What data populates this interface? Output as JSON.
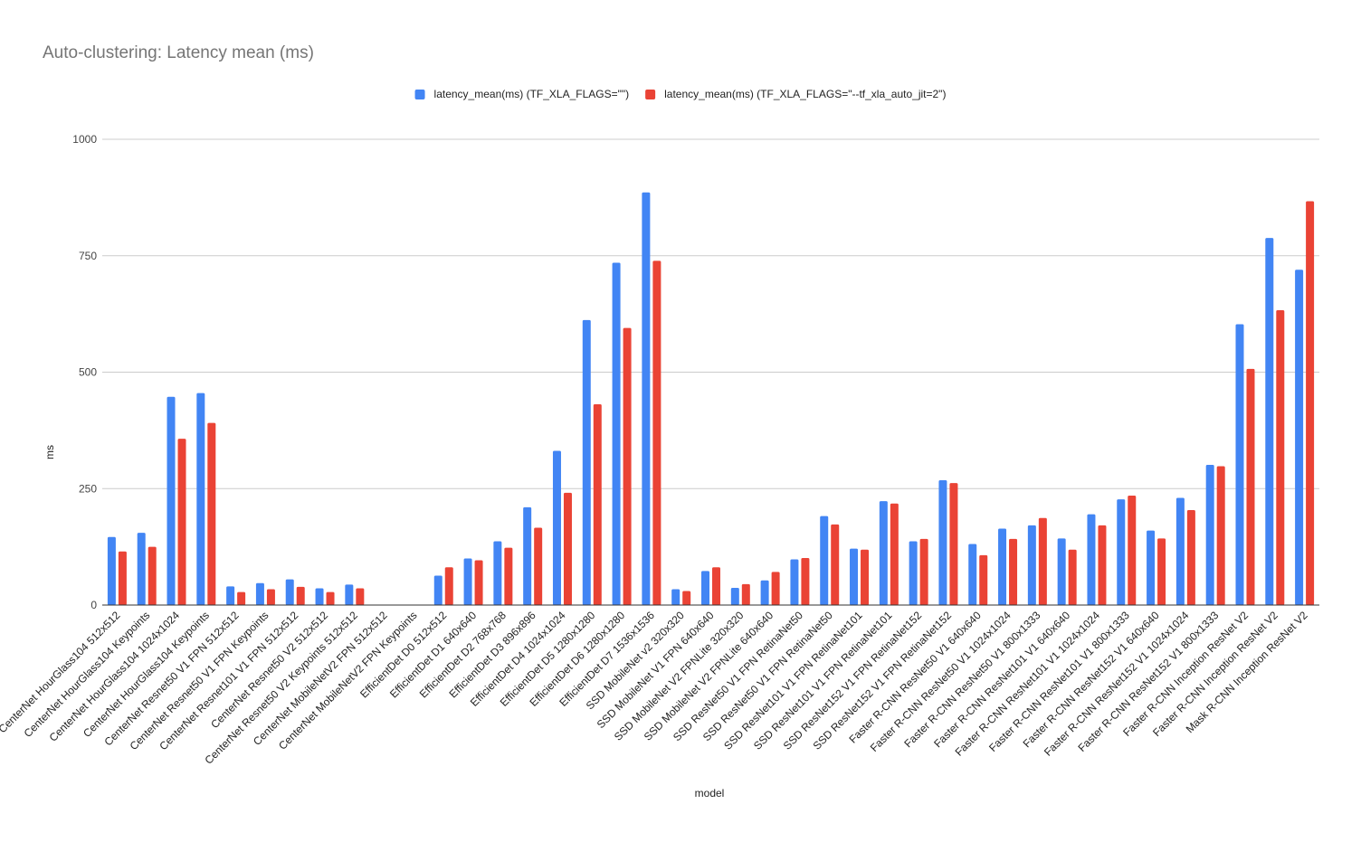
{
  "chart_data": {
    "type": "bar",
    "title": "Auto-clustering: Latency mean (ms)",
    "xlabel": "model",
    "ylabel": "ms",
    "ylim": [
      0,
      1000
    ],
    "yticks": [
      0,
      250,
      500,
      750,
      1000
    ],
    "grid": true,
    "legend_position": "top",
    "categories": [
      "CenterNet HourGlass104 512x512",
      "CenterNet HourGlass104 Keypoints",
      "CenterNet HourGlass104 1024x1024",
      "CenterNet HourGlass104 Keypoints",
      "CenterNet Resnet50 V1 FPN 512x512",
      "CenterNet Resnet50 V1 FPN Keypoints",
      "CenterNet Resnet101 V1 FPN 512x512",
      "CenterNet Resnet50 V2 512x512",
      "CenterNet Resnet50 V2 Keypoints 512x512",
      "CenterNet MobileNetV2 FPN 512x512",
      "CenterNet MobileNetV2 FPN Keypoints",
      "EfficientDet D0 512x512",
      "EfficientDet D1 640x640",
      "EfficientDet D2 768x768",
      "EfficientDet D3 896x896",
      "EfficientDet D4 1024x1024",
      "EfficientDet D5 1280x1280",
      "EfficientDet D6 1280x1280",
      "EfficientDet D7 1536x1536",
      "SSD MobileNet v2 320x320",
      "SSD MobileNet V1 FPN 640x640",
      "SSD MobileNet V2 FPNLite 320x320",
      "SSD MobileNet V2 FPNLite 640x640",
      "SSD ResNet50 V1 FPN RetinaNet50",
      "SSD ResNet50 V1 FPN RetinaNet50",
      "SSD ResNet101 V1 FPN RetinaNet101",
      "SSD ResNet101 V1 FPN RetinaNet101",
      "SSD ResNet152 V1 FPN RetinaNet152",
      "SSD ResNet152 V1 FPN RetinaNet152",
      "Faster R-CNN ResNet50 V1 640x640",
      "Faster R-CNN ResNet50 V1 1024x1024",
      "Faster R-CNN ResNet50 V1 800x1333",
      "Faster R-CNN ResNet101 V1 640x640",
      "Faster R-CNN ResNet101 V1 1024x1024",
      "Faster R-CNN ResNet101 V1 800x1333",
      "Faster R-CNN ResNet152 V1 640x640",
      "Faster R-CNN ResNet152 V1 1024x1024",
      "Faster R-CNN ResNet152 V1 800x1333",
      "Faster R-CNN Inception ResNet V2",
      "Faster R-CNN Inception ResNet V2",
      "Mask R-CNN Inception ResNet V2"
    ],
    "series": [
      {
        "name": "latency_mean(ms) (TF_XLA_FLAGS=\"\")",
        "color": "#4285f4",
        "values": [
          146,
          155,
          447,
          455,
          40,
          47,
          55,
          36,
          44,
          null,
          null,
          63,
          100,
          137,
          210,
          331,
          612,
          735,
          886,
          34,
          73,
          37,
          53,
          98,
          191,
          121,
          223,
          137,
          268,
          131,
          164,
          171,
          143,
          195,
          227,
          160,
          230,
          301,
          603,
          788,
          720
        ]
      },
      {
        "name": "latency_mean(ms)  (TF_XLA_FLAGS=\"--tf_xla_auto_jit=2\")",
        "color": "#ea4335",
        "values": [
          115,
          125,
          357,
          391,
          28,
          34,
          39,
          28,
          36,
          null,
          null,
          81,
          96,
          123,
          166,
          241,
          431,
          595,
          739,
          30,
          81,
          45,
          71,
          101,
          173,
          119,
          218,
          142,
          262,
          107,
          142,
          187,
          119,
          171,
          235,
          143,
          204,
          298,
          507,
          633,
          867
        ]
      }
    ]
  }
}
